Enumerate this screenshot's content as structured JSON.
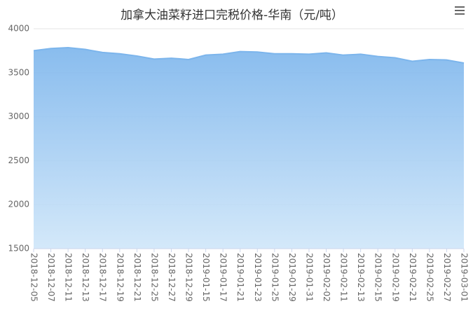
{
  "chart_data": {
    "type": "area",
    "title": "加拿大油菜籽进口完税价格-华南（元/吨）",
    "categories": [
      "2018-12-05",
      "2018-12-07",
      "2018-12-11",
      "2018-12-13",
      "2018-12-17",
      "2018-12-19",
      "2018-12-21",
      "2018-12-25",
      "2018-12-27",
      "2018-12-29",
      "2019-01-15",
      "2019-01-17",
      "2019-01-21",
      "2019-01-23",
      "2019-01-25",
      "2019-01-29",
      "2019-01-31",
      "2019-02-02",
      "2019-02-11",
      "2019-02-13",
      "2019-02-15",
      "2019-02-19",
      "2019-02-21",
      "2019-02-25",
      "2019-02-27",
      "2019-03-01"
    ],
    "values": [
      3750,
      3775,
      3785,
      3765,
      3730,
      3715,
      3690,
      3655,
      3665,
      3650,
      3700,
      3710,
      3740,
      3735,
      3715,
      3715,
      3710,
      3725,
      3700,
      3710,
      3685,
      3670,
      3630,
      3650,
      3645,
      3610
    ],
    "color": "#7cb5ec",
    "ylim": [
      1500,
      4000
    ],
    "yticks": [
      1500,
      2000,
      2500,
      3000,
      3500,
      4000
    ],
    "grid": true
  }
}
